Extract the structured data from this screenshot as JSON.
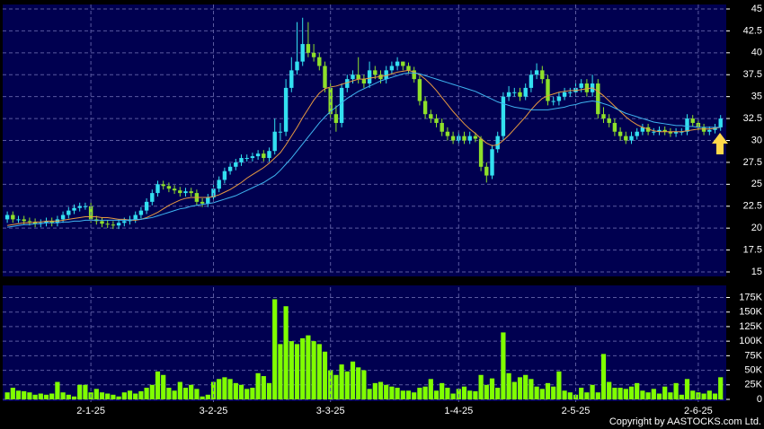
{
  "chart_data": [
    {
      "type": "candlestick",
      "open": [
        21,
        21.5,
        21,
        21,
        20.8,
        20.7,
        20.5,
        20.6,
        20.8,
        20.6,
        21,
        21.5,
        22,
        22.3,
        22.5,
        22.5,
        21,
        20.8,
        20.5,
        20.4,
        20.3,
        20.6,
        20.8,
        21,
        21.5,
        22,
        23,
        24,
        25,
        24.8,
        24.5,
        24.3,
        24,
        24.2,
        24,
        23,
        22.8,
        23.5,
        24.5,
        25.5,
        26.5,
        27,
        27.5,
        28,
        28,
        28.2,
        28.5,
        28,
        28.8,
        31,
        31,
        36,
        38,
        39,
        41,
        40,
        39.5,
        38.5,
        36,
        33,
        32,
        36,
        37,
        37.5,
        37,
        36.5,
        38,
        37.5,
        37,
        38,
        38.5,
        39,
        38.5,
        38,
        37,
        34.5,
        33,
        32.5,
        32,
        31,
        30.5,
        30,
        30.5,
        30,
        30.5,
        30.2,
        27,
        26,
        29,
        30.5,
        35,
        35.5,
        35.5,
        35,
        36,
        37.5,
        38,
        37,
        34.5,
        34.5,
        35,
        35.5,
        35.5,
        36,
        36.5,
        35.5,
        36.5,
        33,
        32.5,
        32,
        31,
        30.5,
        30,
        30.5,
        31,
        31.5,
        31,
        31,
        31.2,
        31,
        30.8,
        31,
        31,
        32.5,
        32,
        31.5,
        31,
        31.2,
        31.5
      ],
      "high": [
        21.9,
        21.9,
        21.4,
        21.4,
        21.2,
        21.1,
        21,
        21.2,
        21.2,
        21.4,
        21.9,
        22.4,
        22.7,
        22.9,
        22.9,
        22.9,
        21.4,
        21.2,
        20.9,
        20.8,
        21,
        21.2,
        21.4,
        21.9,
        22.4,
        23.4,
        24.4,
        25.4,
        25.4,
        25.2,
        24.9,
        24.7,
        24.6,
        24.6,
        24.4,
        23.4,
        23.9,
        24.9,
        25.9,
        26.9,
        27.4,
        27.9,
        28.4,
        28.4,
        28.6,
        28.9,
        28.9,
        29.2,
        32.5,
        32,
        37,
        39.5,
        43.5,
        44,
        43.5,
        41,
        40,
        39,
        36.5,
        34,
        36.5,
        37.5,
        38,
        39.5,
        37.5,
        39,
        38.5,
        38,
        38.5,
        39,
        39.5,
        39,
        38.9,
        38.4,
        37.4,
        35,
        33.5,
        33,
        32.5,
        31.5,
        31,
        31,
        31,
        31,
        30.9,
        30.5,
        27.5,
        29.5,
        31,
        35.5,
        36.2,
        36,
        36,
        36.5,
        38,
        38.8,
        38.5,
        37.5,
        35,
        35.5,
        36,
        36,
        36.5,
        37,
        37,
        37.5,
        37,
        33.8,
        33,
        32.5,
        31.5,
        31,
        31,
        31.4,
        31.9,
        31.9,
        31.4,
        31.6,
        31.6,
        31.4,
        31.4,
        31.4,
        33,
        32.9,
        32.4,
        31.9,
        31.6,
        31.9,
        32.9
      ],
      "low": [
        20.6,
        20.6,
        20.6,
        20.4,
        20.3,
        20.1,
        20.1,
        20.2,
        20.2,
        20.2,
        20.6,
        21.1,
        21.6,
        21.9,
        22.1,
        20.6,
        20.4,
        20.1,
        20,
        19.9,
        19.9,
        20.2,
        20.4,
        20.6,
        21.1,
        21.6,
        22.6,
        23.6,
        24.4,
        24.1,
        23.9,
        23.6,
        23.6,
        23.6,
        22.6,
        22.4,
        22.4,
        23.1,
        24.1,
        25.1,
        26.1,
        26.6,
        27.1,
        27.6,
        27.6,
        27.8,
        27.6,
        27.6,
        28.4,
        30,
        30.5,
        35.5,
        37.5,
        38.5,
        39.5,
        39,
        38,
        35.5,
        32.5,
        31,
        31.5,
        35.5,
        36.5,
        36.5,
        36,
        36,
        37,
        36.5,
        36.5,
        37.5,
        38,
        38,
        37.6,
        36.6,
        34,
        32.5,
        32,
        31.5,
        30.5,
        30,
        29.6,
        29.6,
        29.6,
        29.6,
        29.8,
        26.5,
        25.2,
        25.6,
        28.6,
        30,
        34.5,
        35,
        34.5,
        34.6,
        35.5,
        37,
        36.5,
        34,
        34,
        34,
        34.6,
        35,
        35,
        35.5,
        35,
        35,
        32.5,
        32,
        31.5,
        30.5,
        30,
        29.6,
        29.6,
        30.1,
        30.6,
        30.6,
        30.6,
        30.6,
        30.6,
        30.4,
        30.4,
        30.6,
        30.6,
        31.6,
        31.1,
        30.6,
        30.6,
        30.8,
        31.1
      ],
      "close": [
        21.5,
        21,
        21,
        20.8,
        20.7,
        20.5,
        20.6,
        20.8,
        20.6,
        21,
        21.5,
        22,
        22.3,
        22.5,
        22.5,
        21,
        20.8,
        20.5,
        20.4,
        20.3,
        20.6,
        20.8,
        21,
        21.5,
        22,
        23,
        24,
        25,
        24.8,
        24.5,
        24.3,
        24,
        24.2,
        24,
        23,
        22.8,
        23.5,
        24.5,
        25.5,
        26.5,
        27,
        27.5,
        28,
        28,
        28.2,
        28.5,
        28,
        28.8,
        31,
        31,
        36,
        38,
        39,
        41,
        40,
        39.5,
        38.5,
        36,
        33,
        32,
        36,
        37,
        37.5,
        37,
        36.5,
        38,
        37.5,
        37,
        38,
        38.5,
        39,
        38.5,
        38,
        37,
        34.5,
        33,
        32.5,
        32,
        31,
        30.5,
        30,
        30.5,
        30,
        30.5,
        30.2,
        27,
        26,
        29,
        30.5,
        35,
        35.5,
        35.5,
        35,
        36,
        37.5,
        38,
        37,
        34.5,
        34.5,
        35,
        35.5,
        35.5,
        36,
        36.5,
        35.5,
        36.5,
        33,
        32.5,
        32,
        31,
        30.5,
        30,
        30.5,
        31,
        31.5,
        31,
        31,
        31.2,
        31,
        30.8,
        31,
        31,
        32.5,
        32,
        31.5,
        31,
        31.2,
        31.5,
        32.5
      ],
      "up_color": "#33e0f0",
      "down_color": "#8ee02a",
      "lines": [
        {
          "color": "#e89a40",
          "values": [
            20.3,
            20.4,
            20.5,
            20.6,
            20.6,
            20.7,
            20.7,
            20.8,
            20.8,
            20.8,
            20.9,
            21,
            21.1,
            21.2,
            21.3,
            21.3,
            21.3,
            21.2,
            21.2,
            21.1,
            21,
            21,
            20.9,
            20.9,
            21,
            21.2,
            21.5,
            21.8,
            22.2,
            22.6,
            22.9,
            23.2,
            23.4,
            23.5,
            23.5,
            23.5,
            23.5,
            23.6,
            23.8,
            24.1,
            24.4,
            24.8,
            25.2,
            25.7,
            26.1,
            26.5,
            26.9,
            27.4,
            28,
            28.6,
            29.5,
            30.5,
            31.5,
            32.6,
            33.6,
            34.6,
            35.4,
            35.9,
            36.1,
            36.2,
            36.4,
            36.6,
            36.8,
            37,
            37,
            37.1,
            37.2,
            37.3,
            37.4,
            37.6,
            37.8,
            37.9,
            38,
            37.8,
            37.5,
            37,
            36.4,
            35.7,
            34.9,
            34.1,
            33.3,
            32.6,
            31.9,
            31.3,
            30.8,
            30.2,
            29.7,
            29.4,
            29.5,
            30,
            30.6,
            31.3,
            32,
            32.7,
            33.5,
            34.2,
            34.8,
            35.1,
            35.3,
            35.5,
            35.6,
            35.7,
            35.7,
            35.8,
            35.9,
            36,
            35.6,
            35.1,
            34.5,
            33.9,
            33.3,
            32.7,
            32.2,
            31.8,
            31.5,
            31.3,
            31.1,
            31,
            31,
            31,
            31,
            31,
            31.1,
            31.2,
            31.3,
            31.3,
            31.3,
            31.4,
            31.5
          ]
        },
        {
          "color": "#3fb4f0",
          "values": [
            20.1,
            20.2,
            20.3,
            20.4,
            20.4,
            20.5,
            20.5,
            20.6,
            20.6,
            20.6,
            20.7,
            20.7,
            20.8,
            20.8,
            20.9,
            20.9,
            20.9,
            20.9,
            20.9,
            20.9,
            20.9,
            20.9,
            20.9,
            21,
            21,
            21.1,
            21.2,
            21.4,
            21.6,
            21.8,
            22,
            22.2,
            22.3,
            22.5,
            22.6,
            22.7,
            22.8,
            22.9,
            23.1,
            23.3,
            23.5,
            23.7,
            24,
            24.3,
            24.6,
            24.9,
            25.2,
            25.6,
            26,
            26.6,
            27.3,
            28,
            28.8,
            29.6,
            30.4,
            31.2,
            32,
            32.7,
            33.3,
            33.8,
            34.3,
            34.8,
            35.2,
            35.6,
            35.9,
            36.2,
            36.5,
            36.8,
            37,
            37.2,
            37.4,
            37.6,
            37.7,
            37.7,
            37.6,
            37.4,
            37.2,
            37,
            36.8,
            36.6,
            36.4,
            36.2,
            36,
            35.8,
            35.6,
            35.3,
            35,
            34.7,
            34.4,
            34.2,
            34,
            33.8,
            33.7,
            33.6,
            33.5,
            33.5,
            33.5,
            33.5,
            33.6,
            33.7,
            33.8,
            34,
            34.1,
            34.3,
            34.4,
            34.5,
            34.4,
            34.2,
            34,
            33.7,
            33.4,
            33.1,
            32.9,
            32.7,
            32.5,
            32.3,
            32.1,
            32,
            31.9,
            31.8,
            31.7,
            31.7,
            31.6,
            31.6,
            31.5,
            31.5,
            31.5,
            31.5,
            31.5
          ]
        }
      ],
      "ylim": [
        15,
        45
      ],
      "yticks": [
        15,
        17.5,
        20,
        22.5,
        25,
        27.5,
        30,
        32.5,
        35,
        37.5,
        40,
        42.5,
        45
      ],
      "grid": true
    },
    {
      "type": "bar",
      "categories": [
        null,
        null,
        null,
        null,
        null,
        null,
        null,
        null,
        null,
        null,
        null,
        null,
        null,
        null,
        null,
        "2-1-25",
        null,
        null,
        null,
        null,
        null,
        null,
        null,
        null,
        null,
        null,
        null,
        null,
        null,
        null,
        null,
        null,
        null,
        null,
        null,
        null,
        null,
        "3-2-25",
        null,
        null,
        null,
        null,
        null,
        null,
        null,
        null,
        null,
        null,
        null,
        null,
        null,
        null,
        null,
        null,
        null,
        null,
        null,
        null,
        "3-3-25",
        null,
        null,
        null,
        null,
        null,
        null,
        null,
        null,
        null,
        null,
        null,
        null,
        null,
        null,
        null,
        null,
        null,
        null,
        null,
        null,
        null,
        null,
        "1-4-25",
        null,
        null,
        null,
        null,
        null,
        null,
        null,
        null,
        null,
        null,
        null,
        null,
        null,
        null,
        null,
        null,
        null,
        null,
        null,
        null,
        "2-5-25",
        null,
        null,
        null,
        null,
        null,
        null,
        null,
        null,
        null,
        null,
        null,
        null,
        null,
        null,
        null,
        null,
        null,
        null,
        null,
        null,
        null,
        "2-6-25",
        null,
        null,
        null,
        null
      ],
      "values": [
        12000,
        20000,
        15000,
        14000,
        12000,
        8000,
        10000,
        8000,
        10000,
        30000,
        12000,
        8000,
        5000,
        25000,
        25000,
        12000,
        18000,
        12000,
        10000,
        8000,
        5000,
        12000,
        15000,
        10000,
        14000,
        20000,
        25000,
        48000,
        42000,
        20000,
        15000,
        30000,
        20000,
        25000,
        18000,
        5000,
        8000,
        30000,
        35000,
        38000,
        35000,
        28000,
        25000,
        18000,
        20000,
        45000,
        40000,
        28000,
        172000,
        95000,
        160000,
        100000,
        95000,
        105000,
        110000,
        100000,
        95000,
        82000,
        50000,
        42000,
        60000,
        48000,
        65000,
        55000,
        50000,
        18000,
        28000,
        30000,
        25000,
        22000,
        20000,
        15000,
        15000,
        12000,
        20000,
        22000,
        35000,
        15000,
        28000,
        20000,
        10000,
        18000,
        22000,
        15000,
        14000,
        42000,
        25000,
        36000,
        20000,
        115000,
        45000,
        30000,
        38000,
        42000,
        35000,
        22000,
        18000,
        28000,
        22000,
        48000,
        15000,
        12000,
        8000,
        20000,
        12000,
        25000,
        12000,
        78000,
        30000,
        20000,
        20000,
        18000,
        22000,
        28000,
        15000,
        12000,
        18000,
        10000,
        22000,
        12000,
        28000,
        8000,
        35000,
        15000,
        12000,
        10000,
        15000,
        10000,
        38000
      ],
      "color": "#80ff00",
      "ylim": [
        0,
        185000
      ],
      "yticks": [
        0,
        {
          "value": 25000,
          "label": "25K"
        },
        {
          "value": 50000,
          "label": "50K"
        },
        {
          "value": 75000,
          "label": "75K"
        },
        {
          "value": 100000,
          "label": "100K"
        },
        {
          "value": 125000,
          "label": "125K"
        },
        {
          "value": 150000,
          "label": "150K"
        },
        {
          "value": 175000,
          "label": "175K"
        }
      ],
      "grid": true
    }
  ],
  "footer": {
    "copyright": "Copyright by AASTOCKS.com Ltd."
  }
}
